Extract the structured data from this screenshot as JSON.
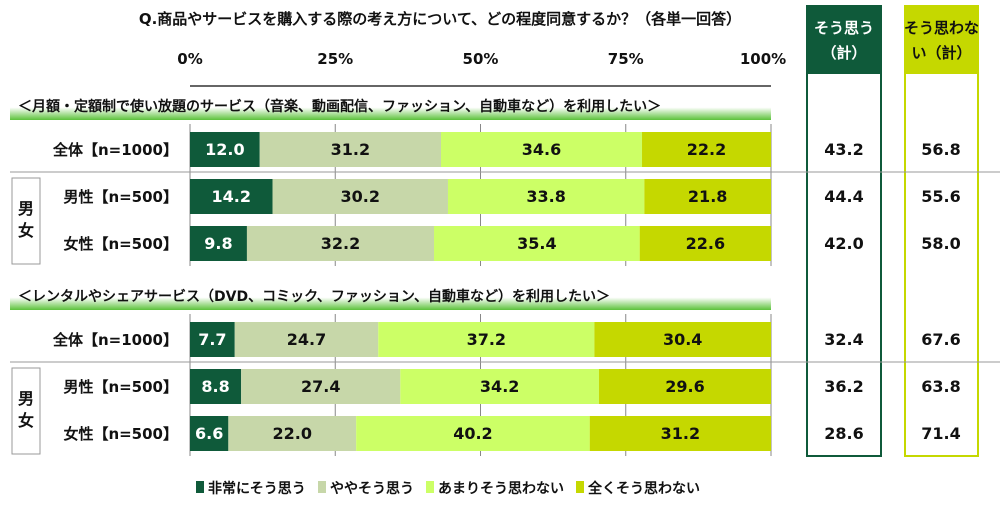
{
  "chart_data": {
    "type": "bar",
    "orientation": "horizontal-stacked-100",
    "title": "Q.商品やサービスを購入する際の考え方について、どの程度同意するか？（各単一回答）",
    "xlim": [
      0,
      100
    ],
    "x_ticks": [
      "0%",
      "25%",
      "50%",
      "75%",
      "100%"
    ],
    "grid": true,
    "legend_position": "bottom",
    "series_names": [
      "非常にそう思う",
      "ややそう思う",
      "あまりそう思わない",
      "全くそう思わない"
    ],
    "colors": [
      "#0f5a3a",
      "#c7d7a9",
      "#ccff66",
      "#c5d800"
    ],
    "summary_headers": [
      "そう思う（計）",
      "そう思わない（計）"
    ],
    "summary_colors": [
      "#0f5a3a",
      "#c5d800"
    ],
    "group_label": "男女",
    "sections": [
      {
        "title": "＜月額・定額制で使い放題のサービス（音楽、動画配信、ファッション、自動車など）を利用したい＞",
        "rows": [
          {
            "label": "全体【n=1000】",
            "values": [
              12.0,
              31.2,
              34.6,
              22.2
            ],
            "agree": 43.2,
            "disagree": 56.8
          },
          {
            "label": "男性【n=500】",
            "values": [
              14.2,
              30.2,
              33.8,
              21.8
            ],
            "agree": 44.4,
            "disagree": 55.6
          },
          {
            "label": "女性【n=500】",
            "values": [
              9.8,
              32.2,
              35.4,
              22.6
            ],
            "agree": 42.0,
            "disagree": 58.0
          }
        ]
      },
      {
        "title": "＜レンタルやシェアサービス（DVD、コミック、ファッション、自動車など）を利用したい＞",
        "rows": [
          {
            "label": "全体【n=1000】",
            "values": [
              7.7,
              24.7,
              37.2,
              30.4
            ],
            "agree": 32.4,
            "disagree": 67.6
          },
          {
            "label": "男性【n=500】",
            "values": [
              8.8,
              27.4,
              34.2,
              29.6
            ],
            "agree": 36.2,
            "disagree": 63.8
          },
          {
            "label": "女性【n=500】",
            "values": [
              6.6,
              22.0,
              40.2,
              31.2
            ],
            "agree": 28.6,
            "disagree": 71.4
          }
        ]
      }
    ]
  }
}
